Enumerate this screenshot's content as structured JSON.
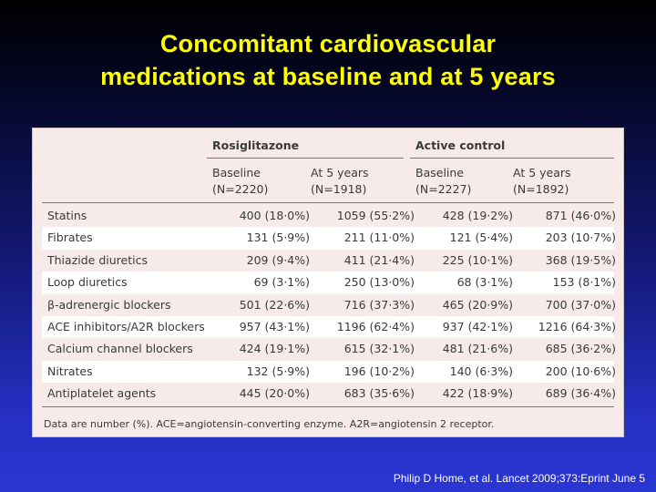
{
  "slide": {
    "title_line1": "Concomitant cardiovascular",
    "title_line2": "medications at baseline and at 5 years",
    "citation": "Philip D Home, et al. Lancet 2009;373:Eprint June 5"
  },
  "table": {
    "groups": [
      "Rosiglitazone",
      "Active control"
    ],
    "columns": [
      {
        "line1": "Baseline",
        "line2": "(N=2220)"
      },
      {
        "line1": "At 5 years",
        "line2": "(N=1918)"
      },
      {
        "line1": "Baseline",
        "line2": "(N=2227)"
      },
      {
        "line1": "At 5 years",
        "line2": "(N=1892)"
      }
    ],
    "rows": [
      {
        "label": "Statins",
        "values": [
          "400 (18·0%)",
          "1059 (55·2%)",
          "428 (19·2%)",
          "871 (46·0%)"
        ]
      },
      {
        "label": "Fibrates",
        "values": [
          "131 (5·9%)",
          "211 (11·0%)",
          "121 (5·4%)",
          "203 (10·7%)"
        ]
      },
      {
        "label": "Thiazide diuretics",
        "values": [
          "209 (9·4%)",
          "411 (21·4%)",
          "225 (10·1%)",
          "368 (19·5%)"
        ]
      },
      {
        "label": "Loop diuretics",
        "values": [
          "69 (3·1%)",
          "250 (13·0%)",
          "68 (3·1%)",
          "153 (8·1%)"
        ]
      },
      {
        "label": "β-adrenergic blockers",
        "values": [
          "501 (22·6%)",
          "716 (37·3%)",
          "465 (20·9%)",
          "700 (37·0%)"
        ]
      },
      {
        "label": "ACE inhibitors/A2R blockers",
        "values": [
          "957 (43·1%)",
          "1196 (62·4%)",
          "937 (42·1%)",
          "1216 (64·3%)"
        ]
      },
      {
        "label": "Calcium channel blockers",
        "values": [
          "424 (19·1%)",
          "615 (32·1%)",
          "481 (21·6%)",
          "685 (36·2%)"
        ]
      },
      {
        "label": "Nitrates",
        "values": [
          "132 (5·9%)",
          "196 (10·2%)",
          "140 (6·3%)",
          "200 (10·6%)"
        ]
      },
      {
        "label": "Antiplatelet agents",
        "values": [
          "445 (20·0%)",
          "683 (35·6%)",
          "422 (18·9%)",
          "689 (36·4%)"
        ]
      }
    ],
    "footnote": "Data are number (%). ACE=angiotensin-converting enzyme. A2R=angiotensin 2 receptor."
  }
}
